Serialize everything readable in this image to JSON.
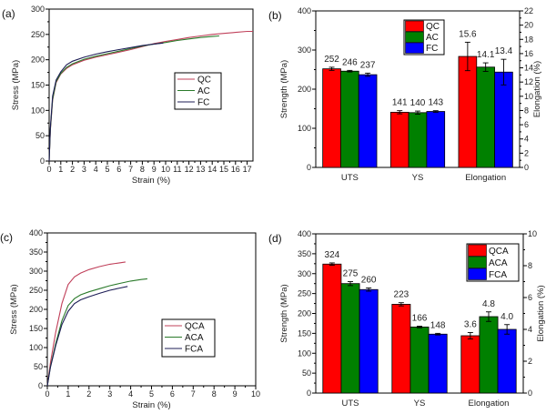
{
  "chart_data": [
    {
      "id": "a",
      "panel_label": "(a)",
      "type": "line",
      "xlabel": "Strain (%)",
      "ylabel": "Stress (MPa)",
      "xlim": [
        0,
        17.5
      ],
      "ylim": [
        0,
        300
      ],
      "xticks": [
        0,
        1,
        2,
        3,
        4,
        5,
        6,
        7,
        8,
        9,
        10,
        11,
        12,
        13,
        14,
        15,
        16,
        17
      ],
      "yticks": [
        0,
        50,
        100,
        150,
        200,
        250,
        300
      ],
      "legend_position": "center-right",
      "series": [
        {
          "name": "QC",
          "color": "#c0405a",
          "points": [
            [
              0,
              0
            ],
            [
              0.1,
              60
            ],
            [
              0.3,
              120
            ],
            [
              0.6,
              155
            ],
            [
              1,
              172
            ],
            [
              1.5,
              183
            ],
            [
              2,
              190
            ],
            [
              3,
              199
            ],
            [
              4,
              205
            ],
            [
              5,
              210
            ],
            [
              6,
              215
            ],
            [
              7,
              220
            ],
            [
              8,
              226
            ],
            [
              9,
              232
            ],
            [
              10,
              236
            ],
            [
              11,
              240
            ],
            [
              12,
              244
            ],
            [
              13,
              247
            ],
            [
              14,
              250
            ],
            [
              15,
              252
            ],
            [
              16,
              254
            ],
            [
              17,
              256
            ],
            [
              17.5,
              256
            ]
          ]
        },
        {
          "name": "AC",
          "color": "#2a7a2a",
          "points": [
            [
              0,
              0
            ],
            [
              0.1,
              62
            ],
            [
              0.3,
              122
            ],
            [
              0.6,
              157
            ],
            [
              1,
              173
            ],
            [
              1.5,
              185
            ],
            [
              2,
              192
            ],
            [
              3,
              201
            ],
            [
              4,
              207
            ],
            [
              5,
              212
            ],
            [
              6,
              217
            ],
            [
              7,
              222
            ],
            [
              8,
              227
            ],
            [
              9,
              231
            ],
            [
              10,
              234
            ],
            [
              11,
              238
            ],
            [
              12,
              241
            ],
            [
              13,
              244
            ],
            [
              14,
              246
            ],
            [
              14.6,
              247
            ]
          ]
        },
        {
          "name": "FC",
          "color": "#1c1c55",
          "points": [
            [
              0,
              0
            ],
            [
              0.1,
              65
            ],
            [
              0.3,
              128
            ],
            [
              0.6,
              160
            ],
            [
              1,
              176
            ],
            [
              1.5,
              190
            ],
            [
              2,
              197
            ],
            [
              3,
              205
            ],
            [
              4,
              211
            ],
            [
              5,
              216
            ],
            [
              6,
              220
            ],
            [
              7,
              224
            ],
            [
              8,
              228
            ],
            [
              9,
              231
            ],
            [
              9.8,
              233
            ]
          ]
        }
      ]
    },
    {
      "id": "b",
      "panel_label": "(b)",
      "type": "bar",
      "categories": [
        "UTS",
        "YS",
        "Elongation"
      ],
      "ylabel": "Strength (MPa)",
      "y2label": "Elongation (%)",
      "ylim": [
        0,
        400
      ],
      "y2lim": [
        0,
        22
      ],
      "yticks": [
        0,
        100,
        200,
        300,
        400
      ],
      "y2ticks": [
        0,
        2,
        4,
        6,
        8,
        10,
        12,
        14,
        16,
        18,
        20,
        22
      ],
      "legend_position": "top-center",
      "series": [
        {
          "name": "QC",
          "color": "#ff0000",
          "values": [
            252,
            141,
            15.6
          ],
          "errors": [
            4,
            4,
            2.0
          ],
          "labels": [
            "252",
            "141",
            "15.6"
          ]
        },
        {
          "name": "AC",
          "color": "#008000",
          "values": [
            246,
            140,
            14.1
          ],
          "errors": [
            2,
            4,
            0.6
          ],
          "labels": [
            "246",
            "140",
            "14.1"
          ]
        },
        {
          "name": "FC",
          "color": "#0000ff",
          "values": [
            237,
            143,
            13.4
          ],
          "errors": [
            4,
            2,
            1.8
          ],
          "labels": [
            "237",
            "143",
            "13.4"
          ]
        }
      ],
      "secondary_axis_category": "Elongation"
    },
    {
      "id": "c",
      "panel_label": "(c)",
      "type": "line",
      "xlabel": "Strain (%)",
      "ylabel": "Stress (MPa)",
      "xlim": [
        0,
        10
      ],
      "ylim": [
        0,
        400
      ],
      "xticks": [
        0,
        1,
        2,
        3,
        4,
        5,
        6,
        7,
        8,
        9,
        10
      ],
      "yticks": [
        0,
        50,
        100,
        150,
        200,
        250,
        300,
        350,
        400
      ],
      "legend_position": "center-right",
      "series": [
        {
          "name": "QCA",
          "color": "#c0405a",
          "points": [
            [
              0,
              0
            ],
            [
              0.15,
              60
            ],
            [
              0.4,
              140
            ],
            [
              0.7,
              215
            ],
            [
              1,
              265
            ],
            [
              1.3,
              285
            ],
            [
              1.6,
              295
            ],
            [
              2,
              304
            ],
            [
              2.5,
              312
            ],
            [
              3,
              318
            ],
            [
              3.5,
              322
            ],
            [
              3.75,
              324
            ]
          ]
        },
        {
          "name": "ACA",
          "color": "#2a7a2a",
          "points": [
            [
              0,
              0
            ],
            [
              0.15,
              50
            ],
            [
              0.4,
              110
            ],
            [
              0.7,
              170
            ],
            [
              1,
              210
            ],
            [
              1.3,
              228
            ],
            [
              1.6,
              238
            ],
            [
              2,
              246
            ],
            [
              2.5,
              254
            ],
            [
              3,
              262
            ],
            [
              3.5,
              268
            ],
            [
              4,
              274
            ],
            [
              4.5,
              278
            ],
            [
              4.8,
              280
            ]
          ]
        },
        {
          "name": "FCA",
          "color": "#1c1c55",
          "points": [
            [
              0,
              0
            ],
            [
              0.15,
              48
            ],
            [
              0.4,
              105
            ],
            [
              0.7,
              160
            ],
            [
              1,
              195
            ],
            [
              1.3,
              215
            ],
            [
              1.6,
              225
            ],
            [
              2,
              233
            ],
            [
              2.5,
              242
            ],
            [
              3,
              250
            ],
            [
              3.5,
              256
            ],
            [
              3.85,
              260
            ]
          ]
        }
      ]
    },
    {
      "id": "d",
      "panel_label": "(d)",
      "type": "bar",
      "categories": [
        "UTS",
        "YS",
        "Elongation"
      ],
      "ylabel": "Strength (MPa)",
      "y2label": "Elongation (%)",
      "ylim": [
        0,
        400
      ],
      "y2lim": [
        0,
        10
      ],
      "yticks": [
        0,
        50,
        100,
        150,
        200,
        250,
        300,
        350,
        400
      ],
      "y2ticks": [
        0,
        2,
        4,
        6,
        8,
        10
      ],
      "legend_position": "top-right",
      "series": [
        {
          "name": "QCA",
          "color": "#ff0000",
          "values": [
            324,
            223,
            3.6
          ],
          "errors": [
            3,
            4,
            0.2
          ],
          "labels": [
            "324",
            "223",
            "3.6"
          ]
        },
        {
          "name": "ACA",
          "color": "#008000",
          "values": [
            275,
            166,
            4.8
          ],
          "errors": [
            5,
            2,
            0.3
          ],
          "labels": [
            "275",
            "166",
            "4.8"
          ]
        },
        {
          "name": "FCA",
          "color": "#0000ff",
          "values": [
            260,
            148,
            4.0
          ],
          "errors": [
            4,
            2,
            0.3
          ],
          "labels": [
            "260",
            "148",
            "4.0"
          ]
        }
      ],
      "secondary_axis_category": "Elongation"
    }
  ]
}
